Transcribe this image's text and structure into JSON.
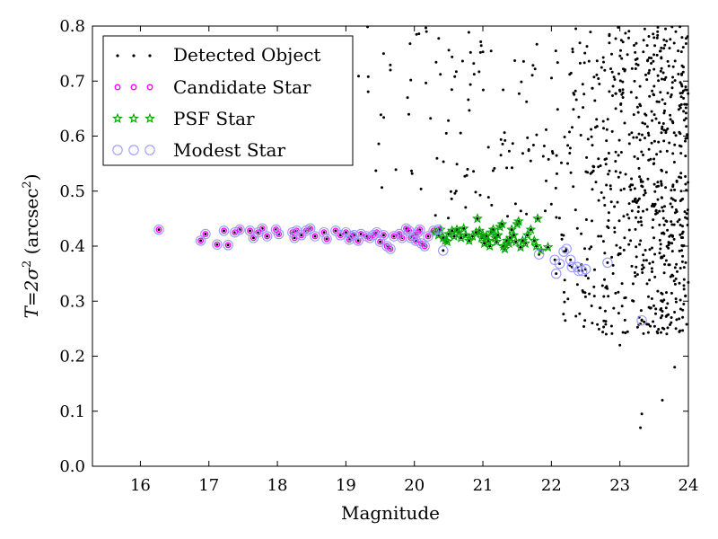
{
  "chart_data": {
    "type": "scatter",
    "title": "",
    "xlabel": "Magnitude",
    "ylabel_parts": [
      "T",
      "=",
      "2σ",
      "2",
      " (arcsec",
      "2",
      ")"
    ],
    "xlim": [
      15.3,
      24
    ],
    "ylim": [
      0,
      0.8
    ],
    "xticks": [
      16,
      17,
      18,
      19,
      20,
      21,
      22,
      23,
      24
    ],
    "yticks": [
      0.0,
      0.1,
      0.2,
      0.3,
      0.4,
      0.5,
      0.6,
      0.7,
      0.8
    ],
    "ytick_labels": [
      "0.0",
      "0.1",
      "0.2",
      "0.3",
      "0.4",
      "0.5",
      "0.6",
      "0.7",
      "0.8"
    ],
    "legend": {
      "position": "top-left",
      "entries": [
        "Detected Object",
        "Candidate Star",
        "PSF Star",
        "Modest Star"
      ]
    },
    "colors": {
      "detected": "#000000",
      "candidate": "#ff00ff",
      "psf": "#00aa00",
      "modest": "#9999ff"
    },
    "series": [
      {
        "name": "Candidate Star",
        "points": [
          [
            16.27,
            0.43
          ],
          [
            16.88,
            0.41
          ],
          [
            16.95,
            0.422
          ],
          [
            17.12,
            0.403
          ],
          [
            17.22,
            0.428
          ],
          [
            17.28,
            0.402
          ],
          [
            17.38,
            0.425
          ],
          [
            17.45,
            0.43
          ],
          [
            17.6,
            0.428
          ],
          [
            17.65,
            0.415
          ],
          [
            17.72,
            0.425
          ],
          [
            17.78,
            0.432
          ],
          [
            17.85,
            0.418
          ],
          [
            17.98,
            0.43
          ],
          [
            18.02,
            0.422
          ],
          [
            18.22,
            0.425
          ],
          [
            18.25,
            0.415
          ],
          [
            18.28,
            0.428
          ],
          [
            18.35,
            0.42
          ],
          [
            18.42,
            0.428
          ],
          [
            18.48,
            0.432
          ],
          [
            18.55,
            0.418
          ],
          [
            18.68,
            0.425
          ],
          [
            18.72,
            0.413
          ],
          [
            18.85,
            0.428
          ],
          [
            18.92,
            0.42
          ],
          [
            19.0,
            0.425
          ],
          [
            19.05,
            0.412
          ],
          [
            19.08,
            0.418
          ],
          [
            19.12,
            0.42
          ],
          [
            19.18,
            0.41
          ],
          [
            19.22,
            0.422
          ],
          [
            19.3,
            0.418
          ],
          [
            19.35,
            0.415
          ],
          [
            19.4,
            0.42
          ],
          [
            19.45,
            0.425
          ],
          [
            19.5,
            0.408
          ],
          [
            19.55,
            0.42
          ],
          [
            19.6,
            0.4
          ],
          [
            19.65,
            0.395
          ],
          [
            19.7,
            0.418
          ],
          [
            19.78,
            0.422
          ],
          [
            19.82,
            0.415
          ],
          [
            19.88,
            0.432
          ],
          [
            19.92,
            0.428
          ],
          [
            19.95,
            0.415
          ],
          [
            20.0,
            0.42
          ],
          [
            20.02,
            0.41
          ],
          [
            20.05,
            0.425
          ],
          [
            20.08,
            0.43
          ],
          [
            20.1,
            0.405
          ],
          [
            20.15,
            0.4
          ],
          [
            20.2,
            0.418
          ],
          [
            20.28,
            0.428
          ],
          [
            20.35,
            0.43
          ]
        ]
      },
      {
        "name": "PSF Star",
        "points": [
          [
            20.3,
            0.425
          ],
          [
            20.35,
            0.42
          ],
          [
            20.38,
            0.43
          ],
          [
            20.42,
            0.415
          ],
          [
            20.45,
            0.41
          ],
          [
            20.48,
            0.408
          ],
          [
            20.5,
            0.422
          ],
          [
            20.55,
            0.428
          ],
          [
            20.58,
            0.418
          ],
          [
            20.62,
            0.43
          ],
          [
            20.65,
            0.425
          ],
          [
            20.68,
            0.415
          ],
          [
            20.72,
            0.432
          ],
          [
            20.75,
            0.42
          ],
          [
            20.8,
            0.41
          ],
          [
            20.85,
            0.418
          ],
          [
            20.9,
            0.425
          ],
          [
            20.92,
            0.45
          ],
          [
            20.95,
            0.428
          ],
          [
            20.98,
            0.415
          ],
          [
            21.0,
            0.42
          ],
          [
            21.02,
            0.405
          ],
          [
            21.05,
            0.418
          ],
          [
            21.08,
            0.41
          ],
          [
            21.1,
            0.4
          ],
          [
            21.12,
            0.425
          ],
          [
            21.15,
            0.43
          ],
          [
            21.18,
            0.415
          ],
          [
            21.2,
            0.408
          ],
          [
            21.22,
            0.42
          ],
          [
            21.25,
            0.435
          ],
          [
            21.28,
            0.44
          ],
          [
            21.3,
            0.4
          ],
          [
            21.32,
            0.395
          ],
          [
            21.35,
            0.41
          ],
          [
            21.38,
            0.405
          ],
          [
            21.4,
            0.415
          ],
          [
            21.42,
            0.43
          ],
          [
            21.45,
            0.42
          ],
          [
            21.48,
            0.408
          ],
          [
            21.5,
            0.44
          ],
          [
            21.52,
            0.445
          ],
          [
            21.55,
            0.398
          ],
          [
            21.58,
            0.41
          ],
          [
            21.62,
            0.405
          ],
          [
            21.65,
            0.42
          ],
          [
            21.7,
            0.43
          ],
          [
            21.75,
            0.41
          ],
          [
            21.78,
            0.4
          ],
          [
            21.8,
            0.45
          ],
          [
            21.85,
            0.392
          ],
          [
            21.95,
            0.398
          ]
        ]
      },
      {
        "name": "Modest Star",
        "points": [
          [
            20.42,
            0.392
          ],
          [
            21.82,
            0.385
          ],
          [
            22.05,
            0.375
          ],
          [
            22.07,
            0.35
          ],
          [
            22.12,
            0.368
          ],
          [
            22.18,
            0.39
          ],
          [
            22.22,
            0.395
          ],
          [
            22.28,
            0.375
          ],
          [
            22.3,
            0.362
          ],
          [
            22.38,
            0.362
          ],
          [
            22.4,
            0.355
          ],
          [
            22.45,
            0.355
          ],
          [
            22.5,
            0.358
          ],
          [
            22.82,
            0.37
          ],
          [
            23.32,
            0.265
          ]
        ]
      }
    ]
  }
}
